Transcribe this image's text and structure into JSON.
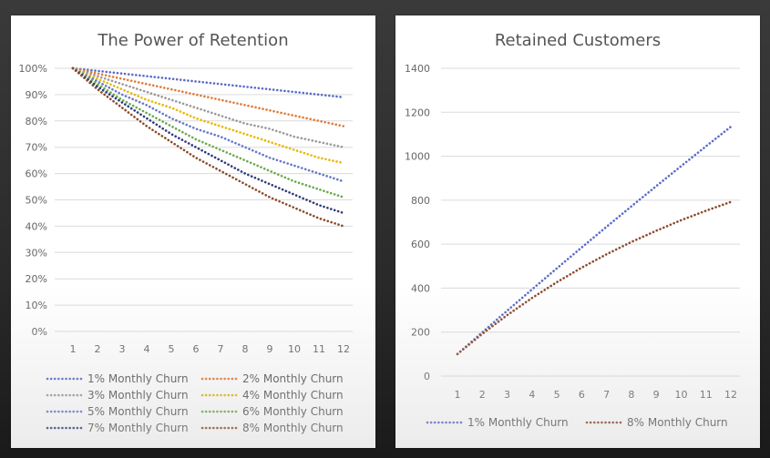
{
  "chart_data": [
    {
      "type": "line",
      "title": "The Power of Retention",
      "x": [
        1,
        2,
        3,
        4,
        5,
        6,
        7,
        8,
        9,
        10,
        11,
        12
      ],
      "ylim": [
        0,
        100
      ],
      "y_ticks": [
        "0%",
        "10%",
        "20%",
        "30%",
        "40%",
        "50%",
        "60%",
        "70%",
        "80%",
        "90%",
        "100%"
      ],
      "grid": true,
      "legend_position": "bottom",
      "series": [
        {
          "name": "1% Monthly Churn",
          "color": "#5b6bc8",
          "values": [
            100,
            99,
            98,
            97,
            96,
            95,
            94,
            93,
            92,
            91,
            90,
            89
          ]
        },
        {
          "name": "2% Monthly Churn",
          "color": "#e07b39",
          "values": [
            100,
            98,
            96,
            94,
            92,
            90,
            88,
            86,
            84,
            82,
            80,
            78
          ]
        },
        {
          "name": "3% Monthly Churn",
          "color": "#9a9a9a",
          "values": [
            100,
            97,
            94,
            91,
            88,
            85,
            82,
            79,
            77,
            74,
            72,
            70
          ]
        },
        {
          "name": "4% Monthly Churn",
          "color": "#e8b800",
          "values": [
            100,
            96,
            92,
            88,
            85,
            81,
            78,
            75,
            72,
            69,
            66,
            64
          ]
        },
        {
          "name": "5% Monthly Churn",
          "color": "#6677cc",
          "values": [
            100,
            95,
            90,
            86,
            81,
            77,
            74,
            70,
            66,
            63,
            60,
            57
          ]
        },
        {
          "name": "6% Monthly Churn",
          "color": "#6aaa4a",
          "values": [
            100,
            94,
            88,
            83,
            78,
            73,
            69,
            65,
            61,
            57,
            54,
            51
          ]
        },
        {
          "name": "7% Monthly Churn",
          "color": "#2e3a7a",
          "values": [
            100,
            93,
            87,
            81,
            75,
            70,
            65,
            60,
            56,
            52,
            48,
            45
          ]
        },
        {
          "name": "8% Monthly Churn",
          "color": "#8a4a2a",
          "values": [
            100,
            92,
            85,
            78,
            72,
            66,
            61,
            56,
            51,
            47,
            43,
            40
          ]
        }
      ]
    },
    {
      "type": "line",
      "title": "Retained Customers",
      "x": [
        1,
        2,
        3,
        4,
        5,
        6,
        7,
        8,
        9,
        10,
        11,
        12
      ],
      "ylim": [
        0,
        1400
      ],
      "y_ticks": [
        "0",
        "200",
        "400",
        "600",
        "800",
        "1000",
        "1200",
        "1400"
      ],
      "grid": true,
      "legend_position": "bottom",
      "series": [
        {
          "name": "1% Monthly Churn",
          "color": "#5b6bc8",
          "values": [
            100,
            199,
            297,
            394,
            490,
            585,
            679,
            772,
            864,
            955,
            1045,
            1134
          ]
        },
        {
          "name": "8% Monthly Churn",
          "color": "#8a4a2a",
          "values": [
            100,
            192,
            277,
            355,
            427,
            493,
            554,
            610,
            661,
            709,
            752,
            792
          ]
        }
      ]
    }
  ]
}
